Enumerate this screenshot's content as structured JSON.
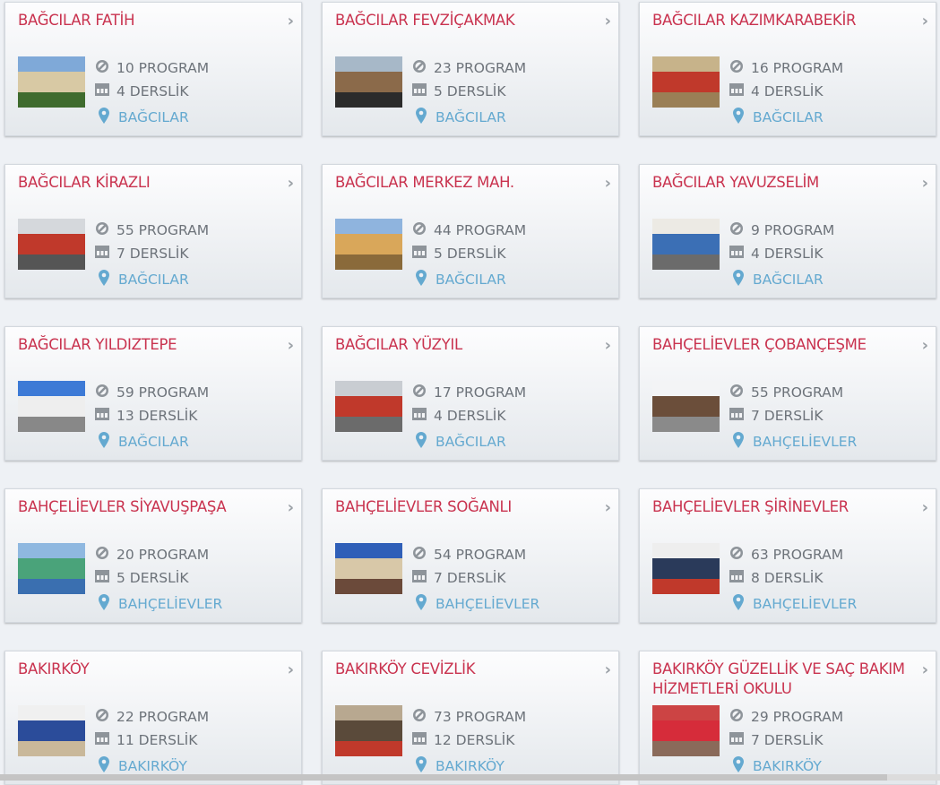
{
  "colors": {
    "title": "#c9334f",
    "text": "#6d737a",
    "location": "#64a9d0"
  },
  "cards": [
    {
      "title": "BAĞCILAR FATİH",
      "programs": "10 PROGRAM",
      "classrooms": "4 DERSLİK",
      "district": "BAĞCILAR",
      "thumb": [
        "#7fa9d8",
        "#d8c9a4",
        "#3f6b2e"
      ]
    },
    {
      "title": "BAĞCILAR FEVZİÇAKMAK",
      "programs": "23 PROGRAM",
      "classrooms": "5 DERSLİK",
      "district": "BAĞCILAR",
      "thumb": [
        "#a7b8c8",
        "#8b6a4a",
        "#2b2b2b"
      ]
    },
    {
      "title": "BAĞCILAR KAZIMKARABEKİR",
      "programs": "16 PROGRAM",
      "classrooms": "4 DERSLİK",
      "district": "BAĞCILAR",
      "thumb": [
        "#c7b38a",
        "#c0392b",
        "#9a7f56"
      ]
    },
    {
      "title": "BAĞCILAR KİRAZLI",
      "programs": "55 PROGRAM",
      "classrooms": "7 DERSLİK",
      "district": "BAĞCILAR",
      "thumb": [
        "#d5d8dc",
        "#c0392b",
        "#555"
      ]
    },
    {
      "title": "BAĞCILAR MERKEZ MAH.",
      "programs": "44 PROGRAM",
      "classrooms": "5 DERSLİK",
      "district": "BAĞCILAR",
      "thumb": [
        "#8fb4de",
        "#d9a75a",
        "#8a6a3a"
      ]
    },
    {
      "title": "BAĞCILAR YAVUZSELİM",
      "programs": "9 PROGRAM",
      "classrooms": "4 DERSLİK",
      "district": "BAĞCILAR",
      "thumb": [
        "#eceae4",
        "#3b6fb5",
        "#6b6b6b"
      ]
    },
    {
      "title": "BAĞCILAR YILDIZTEPE",
      "programs": "59 PROGRAM",
      "classrooms": "13 DERSLİK",
      "district": "BAĞCILAR",
      "thumb": [
        "#3d7ad6",
        "#eeeeee",
        "#888"
      ]
    },
    {
      "title": "BAĞCILAR YÜZYIL",
      "programs": "17 PROGRAM",
      "classrooms": "4 DERSLİK",
      "district": "BAĞCILAR",
      "thumb": [
        "#c9cdd2",
        "#c0392b",
        "#6b6b6b"
      ]
    },
    {
      "title": "BAHÇELİEVLER ÇOBANÇEŞME",
      "programs": "55 PROGRAM",
      "classrooms": "7 DERSLİK",
      "district": "BAHÇELİEVLER",
      "thumb": [
        "#f3f4f6",
        "#6b4e3a",
        "#8a8a8a"
      ]
    },
    {
      "title": "BAHÇELİEVLER SİYAVUŞPAŞA",
      "programs": "20 PROGRAM",
      "classrooms": "5 DERSLİK",
      "district": "BAHÇELİEVLER",
      "thumb": [
        "#8fb8e0",
        "#4aa37a",
        "#3a6fb0"
      ]
    },
    {
      "title": "BAHÇELİEVLER SOĞANLI",
      "programs": "54 PROGRAM",
      "classrooms": "7 DERSLİK",
      "district": "BAHÇELİEVLER",
      "thumb": [
        "#2f5fb8",
        "#d8c8a8",
        "#6b4a3a"
      ]
    },
    {
      "title": "BAHÇELİEVLER ŞİRİNEVLER",
      "programs": "63 PROGRAM",
      "classrooms": "8 DERSLİK",
      "district": "BAHÇELİEVLER",
      "thumb": [
        "#eeeeee",
        "#2a3a5a",
        "#c0392b"
      ]
    },
    {
      "title": "BAKIRKÖY",
      "programs": "22 PROGRAM",
      "classrooms": "11 DERSLİK",
      "district": "BAKIRKÖY",
      "thumb": [
        "#f0f0f0",
        "#2b4c9a",
        "#c9b89a"
      ]
    },
    {
      "title": "BAKIRKÖY CEVİZLİK",
      "programs": "73 PROGRAM",
      "classrooms": "12 DERSLİK",
      "district": "BAKIRKÖY",
      "thumb": [
        "#b8a890",
        "#5a4a3a",
        "#c0392b"
      ]
    },
    {
      "title": "BAKIRKÖY GÜZELLİK VE SAÇ BAKIM HİZMETLERİ OKULU",
      "programs": "29 PROGRAM",
      "classrooms": "7 DERSLİK",
      "district": "BAKIRKÖY",
      "thumb": [
        "#c44",
        "#d62c3a",
        "#8a6a5a"
      ]
    }
  ]
}
